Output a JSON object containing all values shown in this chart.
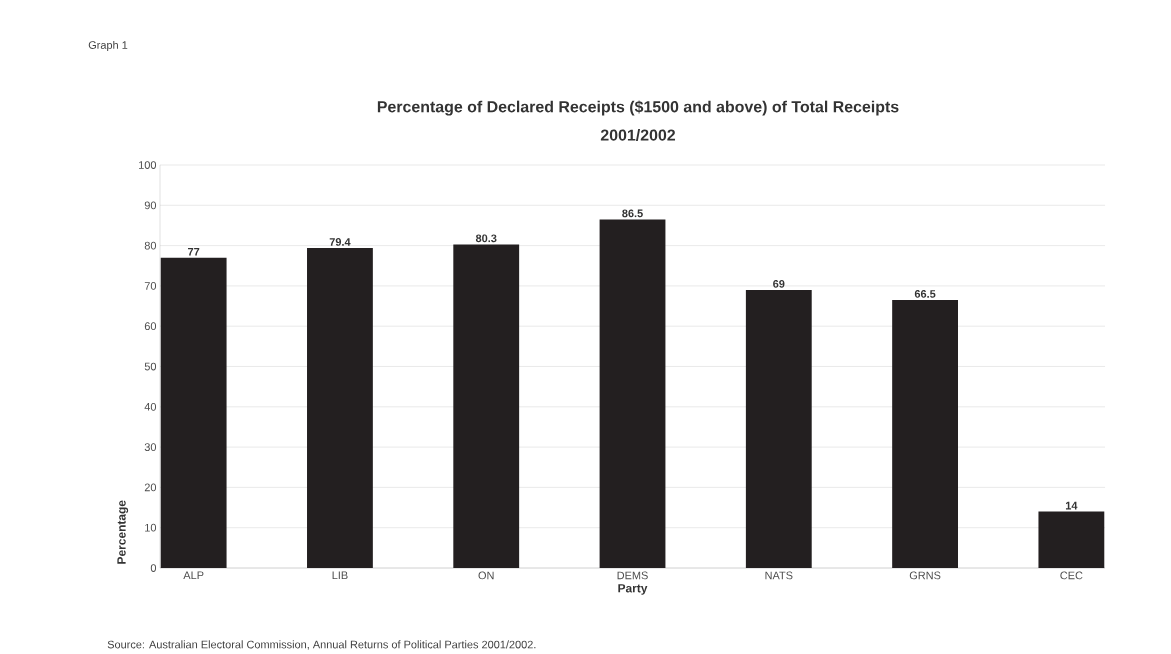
{
  "chart_data": {
    "type": "bar",
    "title": "Percentage of Declared Receipts ($1500 and above) of Total Receipts",
    "subtitle": "2001/2002",
    "xlabel": "Party",
    "ylabel": "Percentage",
    "categories": [
      "ALP",
      "LIB",
      "ON",
      "DEMS",
      "NATS",
      "GRNS",
      "CEC"
    ],
    "values": [
      77,
      79.4,
      80.3,
      86.5,
      69,
      66.5,
      14
    ],
    "color": "#231f20",
    "ylim": [
      0,
      100
    ],
    "yticks": [
      0,
      10,
      20,
      30,
      40,
      50,
      60,
      70,
      80,
      90,
      100
    ],
    "grid": "y",
    "data_labels": true,
    "annotations": [
      "Graph 1",
      "Source:  Australian Electoral Commission, Annual Returns of Political Parties 2001/2002."
    ]
  }
}
